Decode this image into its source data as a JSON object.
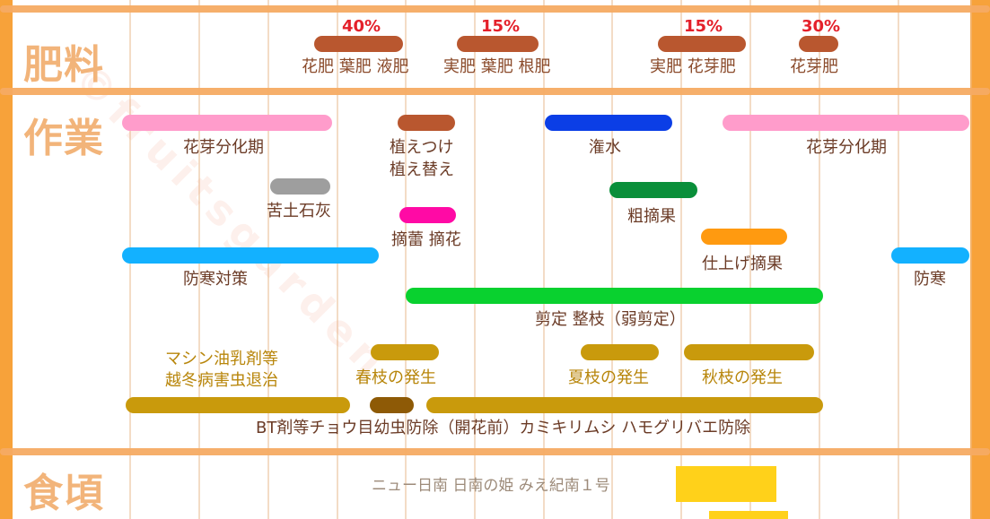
{
  "sections": {
    "fertilizer": "肥料",
    "work": "作業",
    "eating": "食頃"
  },
  "watermark": "©fruitsgarden",
  "fertilizer": {
    "pct_1": "40%",
    "pct_2": "15%",
    "pct_3": "15%",
    "pct_4": "30%",
    "label_1": "花肥 葉肥 液肥",
    "label_2": "実肥 葉肥 根肥",
    "label_3": "実肥 花芽肥",
    "label_4": "花芽肥"
  },
  "work": {
    "flower_bud_1": "花芽分化期",
    "flower_bud_2": "花芽分化期",
    "planting_1": "植えつけ",
    "planting_2": "植え替え",
    "watering": "潅水",
    "lime": "苦土石灰",
    "rough_thinning": "粗摘果",
    "bud_thinning": "摘蕾 摘花",
    "final_thinning": "仕上げ摘果",
    "cold_protection": "防寒対策",
    "cold_protection_2": "防寒",
    "pruning": "剪定 整枝（弱剪定）",
    "oil_line1": "マシン油乳剤等",
    "oil_line2": "越冬病害虫退治",
    "spring_shoots": "春枝の発生",
    "summer_shoots": "夏枝の発生",
    "autumn_shoots": "秋枝の発生",
    "pest_control": "BT剤等チョウ目幼虫防除（開花前）カミキリムシ ハモグリバエ防除"
  },
  "eating": {
    "varieties": "ニュー日南 日南の姫 みえ紀南１号"
  },
  "colors": {
    "fertilizer": "#b9572f",
    "pink": "#ff9ccb",
    "blue": "#0b3ee6",
    "gray": "#9e9e9e",
    "green_dark": "#0a8f3a",
    "magenta": "#ff0aa5",
    "orange": "#ff9a10",
    "sky": "#13b1ff",
    "green": "#09d12f",
    "gold": "#c99a0c",
    "brown_dark": "#8e5a06",
    "yellow": "#ffd11a",
    "section_title": "#f2b47a",
    "divider": "#f6ab63"
  }
}
